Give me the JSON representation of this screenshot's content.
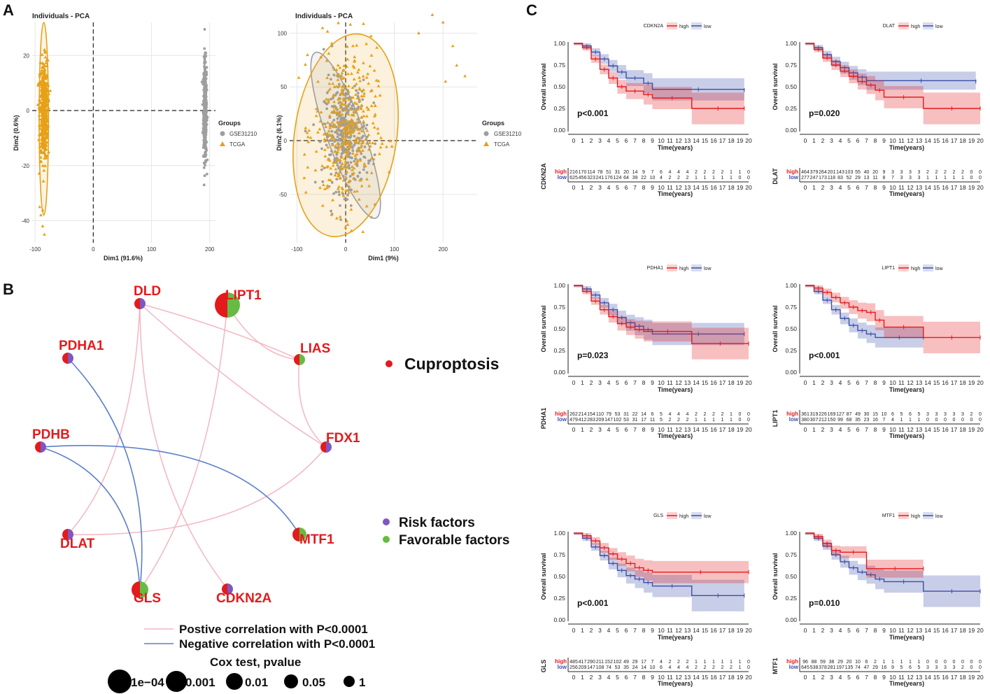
{
  "panels": {
    "a": "A",
    "b": "B",
    "c": "C"
  },
  "colors": {
    "gse": "#9e9e9e",
    "tcga": "#e6a117",
    "red": "#e41a1c",
    "blue": "#3b4fa8",
    "purple": "#7e57c2",
    "green": "#66bb44",
    "pos": "#f4b6c2",
    "neg": "#5b7fcc"
  },
  "chart_data": [
    {
      "type": "scatter",
      "title": "Individuals - PCA",
      "xlabel": "Dim1 (91.6%)",
      "ylabel": "Dim2 (0.6%)",
      "xlim": [
        -105,
        210
      ],
      "ylim": [
        -48,
        32
      ],
      "xticks": [
        -100,
        0,
        100,
        200
      ],
      "yticks": [
        -40,
        -20,
        0,
        20
      ],
      "legend_title": "Groups",
      "legend_position": "right",
      "groups": [
        {
          "name": "GSE31210",
          "center": [
            192,
            0
          ],
          "sd": [
            1.5,
            9
          ],
          "range_y": [
            -27,
            31
          ]
        },
        {
          "name": "TCGA",
          "center": [
            -85,
            0
          ],
          "sd": [
            3.5,
            9
          ],
          "range_y": [
            -45,
            25
          ]
        }
      ]
    },
    {
      "type": "scatter",
      "title": "Individuals - PCA",
      "xlabel": "Dim1 (9%)",
      "ylabel": "Dim2 (6.1%)",
      "xlim": [
        -115,
        270
      ],
      "ylim": [
        -95,
        110
      ],
      "xticks": [
        -100,
        0,
        100,
        200
      ],
      "yticks": [
        -50,
        0,
        50,
        100
      ],
      "legend_title": "Groups",
      "legend_position": "right",
      "groups": [
        {
          "name": "GSE31210",
          "center": [
            0,
            5
          ],
          "sd": [
            22,
            25
          ]
        },
        {
          "name": "TCGA",
          "center": [
            0,
            10
          ],
          "sd": [
            32,
            38
          ]
        }
      ]
    },
    {
      "type": "network",
      "nodes": [
        "DLD",
        "LIPT1",
        "LIAS",
        "PDHA1",
        "FDX1",
        "PDHB",
        "MTF1",
        "DLAT",
        "GLS",
        "CDKN2A"
      ],
      "legend_category": "Cuproptosis",
      "legend_risk": "Risk factors",
      "legend_favorable": "Favorable factors",
      "legend_pos": "Postive correlation with P<0.0001",
      "legend_neg": "Negative correlation with P<0.0001",
      "size_title": "Cox test, pvalue",
      "size_labels": [
        "1e−04",
        "0.001",
        "0.01",
        "0.05",
        "1"
      ]
    },
    {
      "type": "line",
      "subtype": "kaplan-meier",
      "xlabel": "Time(years)",
      "ylabel": "Overall survival",
      "xlim": [
        0,
        20
      ],
      "ylim": [
        0,
        1
      ],
      "xticks": [
        "0",
        "1",
        "2",
        "3",
        "4",
        "5",
        "6",
        "7",
        "8",
        "9",
        "10",
        "11",
        "12",
        "13",
        "14",
        "15",
        "16",
        "17",
        "18",
        "19",
        "20"
      ],
      "yticks": [
        "0.00",
        "0.25",
        "0.50",
        "0.75",
        "1.00"
      ],
      "legend": [
        "high",
        "low"
      ],
      "plots": [
        {
          "gene": "CDKN2A",
          "p": "p<0.001",
          "high_steps": [
            [
              0,
              1
            ],
            [
              1,
              0.95
            ],
            [
              2,
              0.82
            ],
            [
              3,
              0.7
            ],
            [
              4,
              0.6
            ],
            [
              5,
              0.5
            ],
            [
              6,
              0.45
            ],
            [
              8,
              0.41
            ],
            [
              9,
              0.37
            ],
            [
              13.5,
              0.25
            ],
            [
              19.5,
              0.25
            ]
          ],
          "low_steps": [
            [
              0,
              1
            ],
            [
              1,
              0.97
            ],
            [
              2,
              0.9
            ],
            [
              3,
              0.82
            ],
            [
              4,
              0.74
            ],
            [
              5,
              0.67
            ],
            [
              6,
              0.6
            ],
            [
              8,
              0.54
            ],
            [
              9,
              0.47
            ],
            [
              19.5,
              0.46
            ]
          ],
          "risk_high": [
            "216",
            "170",
            "114",
            "78",
            "51",
            "31",
            "20",
            "14",
            "9",
            "7",
            "6",
            "4",
            "4",
            "4",
            "2",
            "2",
            "2",
            "2",
            "1",
            "1",
            "0"
          ],
          "risk_low": [
            "625",
            "456",
            "323",
            "241",
            "176",
            "124",
            "64",
            "39",
            "22",
            "10",
            "4",
            "2",
            "2",
            "2",
            "1",
            "1",
            "1",
            "1",
            "1",
            "0",
            "0"
          ]
        },
        {
          "gene": "DLAT",
          "p": "p=0.020",
          "high_steps": [
            [
              0,
              1
            ],
            [
              1,
              0.93
            ],
            [
              2,
              0.83
            ],
            [
              3,
              0.75
            ],
            [
              4,
              0.68
            ],
            [
              5,
              0.62
            ],
            [
              6,
              0.56
            ],
            [
              7,
              0.52
            ],
            [
              8,
              0.46
            ],
            [
              9,
              0.38
            ],
            [
              13.5,
              0.25
            ],
            [
              20,
              0.25
            ]
          ],
          "low_steps": [
            [
              0,
              1
            ],
            [
              1,
              0.95
            ],
            [
              2,
              0.87
            ],
            [
              3,
              0.79
            ],
            [
              4,
              0.72
            ],
            [
              5,
              0.66
            ],
            [
              6,
              0.61
            ],
            [
              7,
              0.57
            ],
            [
              19.5,
              0.56
            ]
          ],
          "risk_high": [
            "464",
            "379",
            "264",
            "201",
            "143",
            "103",
            "55",
            "40",
            "20",
            "9",
            "3",
            "3",
            "3",
            "3",
            "2",
            "2",
            "2",
            "2",
            "2",
            "0",
            "0"
          ],
          "risk_low": [
            "277",
            "247",
            "173",
            "118",
            "83",
            "52",
            "29",
            "13",
            "11",
            "8",
            "7",
            "3",
            "3",
            "3",
            "1",
            "1",
            "1",
            "1",
            "1",
            "0",
            "0"
          ]
        },
        {
          "gene": "PDHA1",
          "p": "p=0.023",
          "high_steps": [
            [
              0,
              1
            ],
            [
              1,
              0.93
            ],
            [
              2,
              0.82
            ],
            [
              3,
              0.72
            ],
            [
              4,
              0.64
            ],
            [
              5,
              0.56
            ],
            [
              6,
              0.52
            ],
            [
              7,
              0.49
            ],
            [
              8,
              0.47
            ],
            [
              13.5,
              0.33
            ],
            [
              20,
              0.33
            ]
          ],
          "low_steps": [
            [
              0,
              1
            ],
            [
              1,
              0.96
            ],
            [
              2,
              0.89
            ],
            [
              3,
              0.8
            ],
            [
              4,
              0.72
            ],
            [
              5,
              0.63
            ],
            [
              6,
              0.57
            ],
            [
              7,
              0.53
            ],
            [
              8,
              0.49
            ],
            [
              9,
              0.44
            ],
            [
              19.5,
              0.44
            ]
          ],
          "risk_high": [
            "262",
            "214",
            "154",
            "110",
            "79",
            "53",
            "31",
            "22",
            "14",
            "6",
            "5",
            "4",
            "4",
            "4",
            "2",
            "2",
            "2",
            "2",
            "1",
            "0",
            "0"
          ],
          "risk_low": [
            "479",
            "412",
            "283",
            "209",
            "147",
            "102",
            "53",
            "31",
            "17",
            "11",
            "5",
            "2",
            "2",
            "2",
            "1",
            "1",
            "1",
            "1",
            "1",
            "0",
            "0"
          ]
        },
        {
          "gene": "LIPT1",
          "p": "p<0.001",
          "high_steps": [
            [
              0,
              1
            ],
            [
              1,
              0.97
            ],
            [
              2,
              0.92
            ],
            [
              3,
              0.86
            ],
            [
              4,
              0.8
            ],
            [
              5,
              0.75
            ],
            [
              6,
              0.71
            ],
            [
              7,
              0.69
            ],
            [
              8,
              0.6
            ],
            [
              9,
              0.52
            ],
            [
              13.5,
              0.4
            ],
            [
              20,
              0.4
            ]
          ],
          "low_steps": [
            [
              0,
              1
            ],
            [
              1,
              0.93
            ],
            [
              2,
              0.83
            ],
            [
              3,
              0.72
            ],
            [
              4,
              0.62
            ],
            [
              5,
              0.54
            ],
            [
              6,
              0.48
            ],
            [
              7,
              0.44
            ],
            [
              8,
              0.4
            ],
            [
              13.5,
              0.4
            ]
          ],
          "risk_high": [
            "361",
            "319",
            "226",
            "169",
            "127",
            "87",
            "49",
            "30",
            "15",
            "10",
            "6",
            "5",
            "6",
            "5",
            "3",
            "3",
            "3",
            "3",
            "3",
            "2",
            "0"
          ],
          "risk_low": [
            "380",
            "307",
            "212",
            "150",
            "99",
            "68",
            "35",
            "23",
            "16",
            "7",
            "4",
            "1",
            "1",
            "1",
            "0",
            "0",
            "0",
            "0",
            "0",
            "0",
            "0"
          ]
        },
        {
          "gene": "GLS",
          "p": "p<0.001",
          "high_steps": [
            [
              0,
              1
            ],
            [
              1,
              0.97
            ],
            [
              2,
              0.91
            ],
            [
              3,
              0.83
            ],
            [
              4,
              0.76
            ],
            [
              5,
              0.7
            ],
            [
              6,
              0.65
            ],
            [
              7,
              0.6
            ],
            [
              8,
              0.57
            ],
            [
              9,
              0.55
            ],
            [
              20,
              0.55
            ]
          ],
          "low_steps": [
            [
              0,
              1
            ],
            [
              1,
              0.94
            ],
            [
              2,
              0.84
            ],
            [
              3,
              0.74
            ],
            [
              4,
              0.65
            ],
            [
              5,
              0.57
            ],
            [
              6,
              0.51
            ],
            [
              7,
              0.47
            ],
            [
              8,
              0.43
            ],
            [
              9,
              0.39
            ],
            [
              13.5,
              0.28
            ],
            [
              19.5,
              0.28
            ]
          ],
          "risk_high": [
            "485",
            "417",
            "290",
            "211",
            "152",
            "102",
            "49",
            "29",
            "17",
            "7",
            "4",
            "2",
            "2",
            "2",
            "1",
            "1",
            "1",
            "1",
            "1",
            "1",
            "0"
          ],
          "risk_low": [
            "256",
            "209",
            "147",
            "108",
            "74",
            "53",
            "35",
            "24",
            "14",
            "10",
            "6",
            "4",
            "4",
            "4",
            "2",
            "2",
            "2",
            "2",
            "2",
            "1",
            "0"
          ]
        },
        {
          "gene": "MTF1",
          "p": "p=0.010",
          "high_steps": [
            [
              0,
              1
            ],
            [
              1,
              0.96
            ],
            [
              2,
              0.88
            ],
            [
              3,
              0.8
            ],
            [
              4,
              0.78
            ],
            [
              7,
              0.59
            ],
            [
              13.5,
              0.59
            ]
          ],
          "low_steps": [
            [
              0,
              1
            ],
            [
              1,
              0.94
            ],
            [
              2,
              0.85
            ],
            [
              3,
              0.75
            ],
            [
              4,
              0.67
            ],
            [
              5,
              0.6
            ],
            [
              6,
              0.55
            ],
            [
              7,
              0.52
            ],
            [
              8,
              0.47
            ],
            [
              9,
              0.44
            ],
            [
              13.5,
              0.33
            ],
            [
              20,
              0.33
            ]
          ],
          "risk_high": [
            "96",
            "88",
            "59",
            "38",
            "29",
            "20",
            "10",
            "6",
            "2",
            "1",
            "1",
            "1",
            "1",
            "1",
            "0",
            "0",
            "0",
            "0",
            "0",
            "0",
            "0"
          ],
          "risk_low": [
            "645",
            "538",
            "378",
            "281",
            "197",
            "135",
            "74",
            "47",
            "29",
            "16",
            "9",
            "5",
            "6",
            "5",
            "3",
            "3",
            "3",
            "3",
            "2",
            "0",
            "0"
          ]
        }
      ]
    }
  ]
}
